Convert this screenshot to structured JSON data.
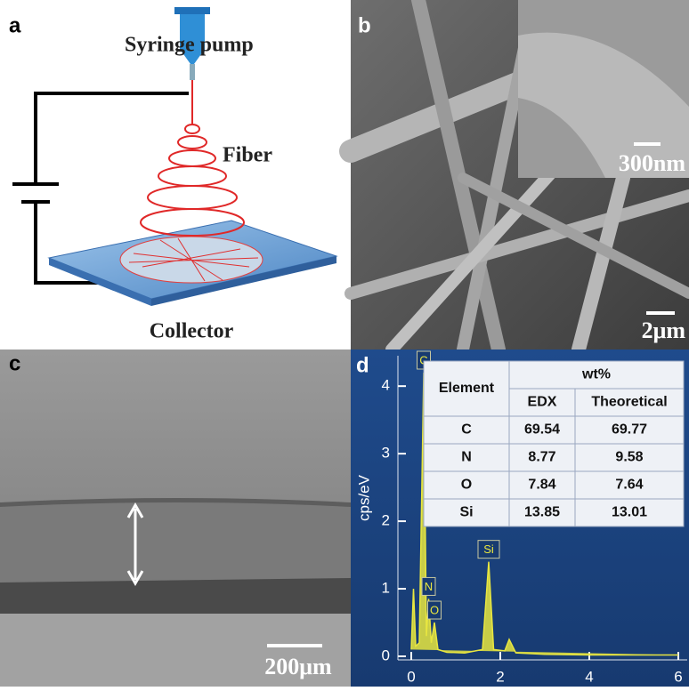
{
  "panels": {
    "a": {
      "label": "a",
      "syringe": "Syringe pump",
      "fiber": "Fiber",
      "collector": "Collector"
    },
    "b": {
      "label": "b",
      "inset_scale": "300nm",
      "scale": "2μm"
    },
    "c": {
      "label": "c",
      "scale": "200μm"
    },
    "d": {
      "label": "d"
    }
  },
  "chart_data": {
    "type": "area",
    "ylabel": "cps/eV",
    "color": "#e8e640",
    "x": [
      0,
      0.05,
      0.1,
      0.18,
      0.28,
      0.34,
      0.39,
      0.45,
      0.52,
      0.6,
      0.8,
      1.2,
      1.6,
      1.74,
      1.85,
      2.1,
      2.2,
      2.35,
      3,
      4,
      5,
      6
    ],
    "values": [
      0.1,
      1.0,
      0.15,
      0.2,
      4.2,
      0.3,
      0.85,
      0.2,
      0.5,
      0.1,
      0.06,
      0.05,
      0.1,
      1.4,
      0.1,
      0.08,
      0.25,
      0.05,
      0.03,
      0.02,
      0.02,
      0.02
    ],
    "xlim": [
      0,
      6
    ],
    "xticks": [
      0,
      2,
      4,
      6
    ],
    "ylim": [
      0,
      4.45
    ],
    "yticks": [
      0,
      1,
      2,
      3,
      4
    ],
    "annotations": [
      {
        "text": "C",
        "x": 0.28,
        "y": 4.2
      },
      {
        "text": "N",
        "x": 0.39,
        "y": 0.85
      },
      {
        "text": "O",
        "x": 0.52,
        "y": 0.5
      },
      {
        "text": "Si",
        "x": 1.74,
        "y": 1.4
      }
    ]
  },
  "table": {
    "header": [
      "Element",
      "wt%"
    ],
    "subheader": [
      "EDX",
      "Theoretical"
    ],
    "rows": [
      [
        "C",
        "69.54",
        "69.77"
      ],
      [
        "N",
        "8.77",
        "9.58"
      ],
      [
        "O",
        "7.84",
        "7.64"
      ],
      [
        "Si",
        "13.85",
        "13.01"
      ]
    ]
  }
}
